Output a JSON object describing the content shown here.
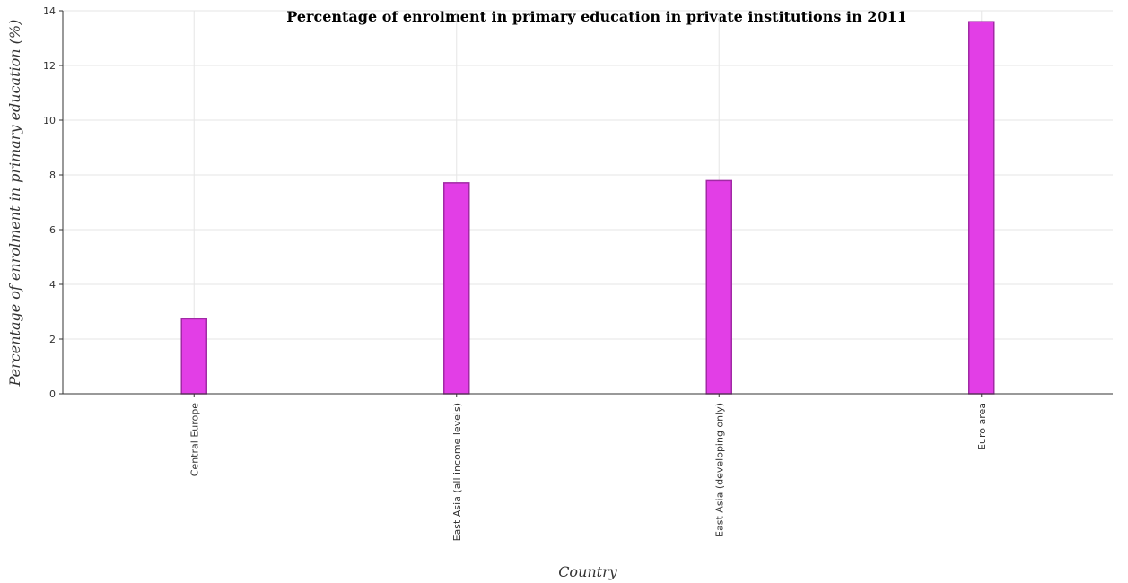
{
  "chart_data": {
    "type": "bar",
    "title": "Percentage of enrolment in primary education in private institutions in 2011",
    "xlabel": "Country",
    "ylabel": "Percentage of enrolment in primary education (%)",
    "categories": [
      "Central Europe",
      "East Asia (all income levels)",
      "East Asia (developing only)",
      "Euro area"
    ],
    "values": [
      2.74,
      7.71,
      7.79,
      13.6
    ],
    "ylim": [
      0,
      14
    ],
    "yticks": [
      "0",
      "2",
      "4",
      "6",
      "8",
      "10",
      "12",
      "14"
    ],
    "grid": true,
    "bar_color": "#e23ee6",
    "bar_edge_color": "#a12aa5"
  }
}
